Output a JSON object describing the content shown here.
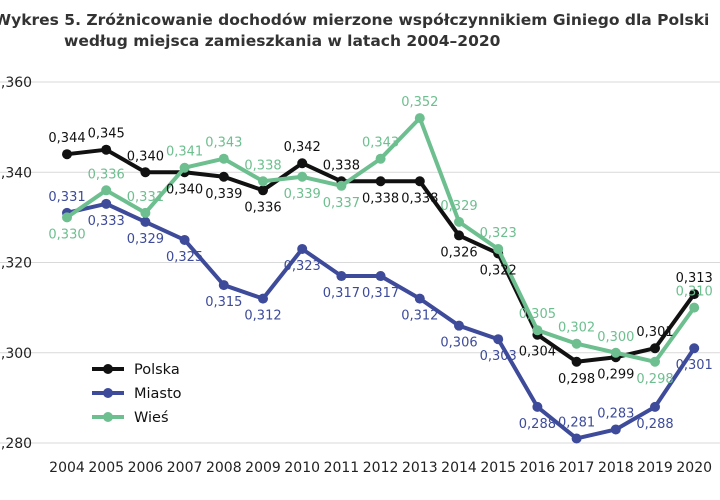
{
  "chart_data": {
    "type": "line",
    "title_line1": "Wykres 5. Zróżnicowanie dochodów mierzone współczynnikiem Giniego dla Polski",
    "title_line2": "według miejsca zamieszkania w latach 2004–2020",
    "x": [
      "2004",
      "2005",
      "2006",
      "2007",
      "2008",
      "2009",
      "2010",
      "2011",
      "2012",
      "2013",
      "2014",
      "2015",
      "2016",
      "2017",
      "2018",
      "2019",
      "2020"
    ],
    "y_ticks": [
      "0,360",
      "0,340",
      "0,320",
      "0,300",
      "0,280"
    ],
    "ylim": [
      0.28,
      0.36
    ],
    "grid": true,
    "legend_position": "bottom-left",
    "series": [
      {
        "name": "Polska",
        "color": "#111111",
        "values": [
          0.344,
          0.345,
          0.34,
          0.34,
          0.339,
          0.336,
          0.342,
          0.338,
          0.338,
          0.338,
          0.326,
          0.322,
          0.304,
          0.298,
          0.299,
          0.301,
          0.313
        ],
        "labels": [
          "0,344",
          "0,345",
          "0,340",
          "0,340",
          "0,339",
          "0,336",
          "0,342",
          "0,338",
          "0,338",
          "0,338",
          "0,326",
          "0,322",
          "0,304",
          "0,298",
          "0,299",
          "0,301",
          "0,313"
        ]
      },
      {
        "name": "Miasto",
        "color": "#3d4b9a",
        "values": [
          0.331,
          0.333,
          0.329,
          0.325,
          0.315,
          0.312,
          0.323,
          0.317,
          0.317,
          0.312,
          0.306,
          0.303,
          0.288,
          0.281,
          0.283,
          0.288,
          0.301
        ],
        "labels": [
          "0,331",
          "0,333",
          "0,329",
          "0,325",
          "0,315",
          "0,312",
          "0,323",
          "0,317",
          "0,317",
          "0,312",
          "0,306",
          "0,303",
          "0,288",
          "0,281",
          "0,283",
          "0,288",
          "0,301"
        ]
      },
      {
        "name": "Wieś",
        "color": "#6dbf8f",
        "values": [
          0.33,
          0.336,
          0.331,
          0.341,
          0.343,
          0.338,
          0.339,
          0.337,
          0.343,
          0.352,
          0.329,
          0.323,
          0.305,
          0.302,
          0.3,
          0.298,
          0.31
        ],
        "labels": [
          "0,330",
          "0,336",
          "0,331",
          "0,341",
          "0,343",
          "0,338",
          "0,339",
          "0,337",
          "0,343",
          "0,352",
          "0,329",
          "0,323",
          "0,305",
          "0,302",
          "0,300",
          "0,298",
          "0,310"
        ]
      }
    ]
  }
}
